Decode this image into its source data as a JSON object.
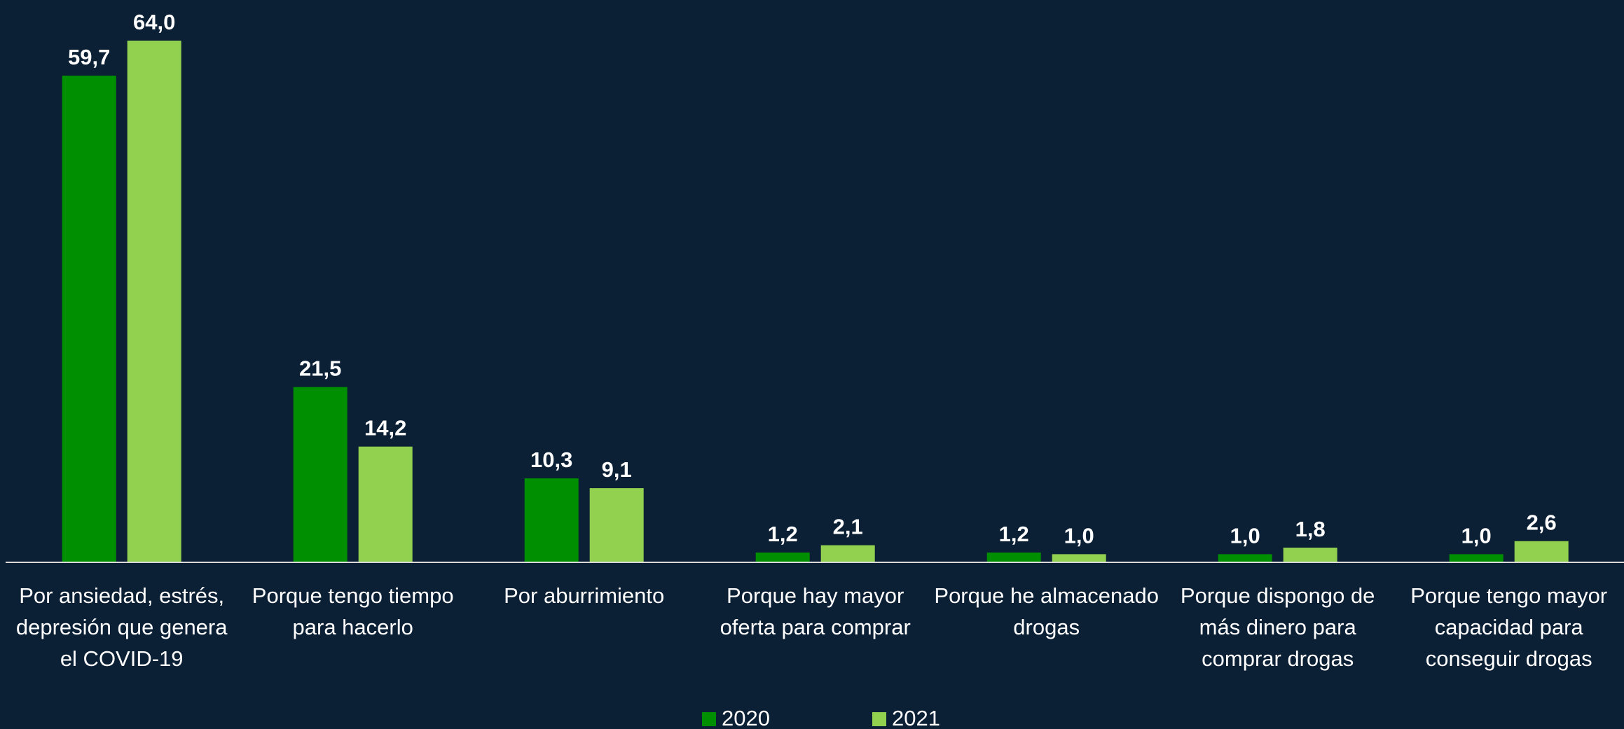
{
  "chart_data": {
    "type": "bar",
    "categories": [
      "Por ansiedad, estrés, depresión que genera el COVID-19",
      "Porque tengo tiempo para hacerlo",
      "Por aburrimiento",
      "Porque hay mayor oferta para comprar",
      "Porque he almacenado drogas",
      "Porque dispongo de más dinero para comprar drogas",
      "Porque tengo mayor capacidad para conseguir drogas"
    ],
    "series": [
      {
        "name": "2020",
        "color": "#008f00",
        "values": [
          59.7,
          21.5,
          10.3,
          1.2,
          1.2,
          1.0,
          1.0
        ],
        "value_labels": [
          "59,7",
          "21,5",
          "10,3",
          "1,2",
          "1,2",
          "1,0",
          "1,0"
        ]
      },
      {
        "name": "2021",
        "color": "#92d050",
        "values": [
          64.0,
          14.2,
          9.1,
          2.1,
          1.0,
          1.8,
          2.6
        ],
        "value_labels": [
          "64,0",
          "14,2",
          "9,1",
          "2,1",
          "1,0",
          "1,8",
          "2,6"
        ]
      }
    ],
    "ylim": [
      0,
      64
    ]
  }
}
